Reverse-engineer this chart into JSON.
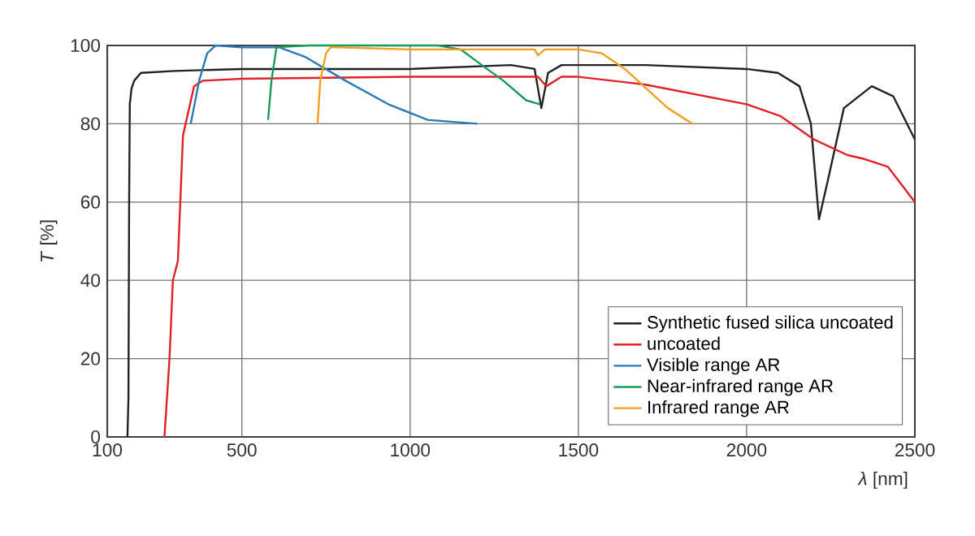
{
  "chart_data": {
    "type": "line",
    "xlabel": "*λ* [nm]",
    "ylabel": "*T* [%]",
    "xlim": [
      100,
      2500
    ],
    "xticks": [
      100,
      500,
      1000,
      1500,
      2000,
      2500
    ],
    "ylim": [
      0,
      100
    ],
    "yticks": [
      0,
      20,
      40,
      60,
      80,
      100
    ],
    "grid": true,
    "legend": "bottom right",
    "marker": "none",
    "line_style": "solid",
    "series": [
      {
        "name": "Synthetic fused silica uncoated",
        "color": "#222222",
        "x": [
          160,
          163,
          165,
          167,
          172,
          180,
          200,
          300,
          500,
          1000,
          1300,
          1370,
          1390,
          1410,
          1450,
          1700,
          2000,
          2093,
          2157,
          2191,
          2215,
          2240,
          2289,
          2372,
          2436,
          2500
        ],
        "values": [
          0,
          10,
          60,
          85,
          89,
          91,
          93,
          93.5,
          94,
          94,
          95,
          94,
          84,
          93,
          95,
          95,
          94,
          93,
          89.6,
          80,
          55.6,
          65,
          84,
          89.6,
          87,
          76
        ]
      },
      {
        "name": "uncoated",
        "color": "#e0202a",
        "x": [
          270,
          285,
          295,
          310,
          325,
          358,
          383,
          500,
          1000,
          1380,
          1405,
          1450,
          1500,
          1700,
          2000,
          2100,
          2200,
          2300,
          2350,
          2420,
          2500
        ],
        "values": [
          0,
          20,
          40,
          45,
          77,
          89.6,
          91,
          91.5,
          92,
          92,
          89.6,
          92,
          92,
          90,
          85,
          82,
          76,
          72,
          71,
          69,
          60
        ]
      },
      {
        "name": "Visible range AR",
        "color": "#2a7ab8",
        "x": [
          348,
          373,
          397,
          422,
          500,
          612,
          690,
          808,
          935,
          1052,
          1199
        ],
        "values": [
          80,
          91,
          98,
          100,
          99.5,
          99.5,
          97,
          91,
          85,
          81,
          80
        ]
      },
      {
        "name": "Near-infrared range AR",
        "color": "#1a9a5a",
        "x": [
          578,
          588,
          603,
          700,
          1082,
          1150,
          1213,
          1277,
          1345,
          1385
        ],
        "values": [
          81,
          91,
          99.6,
          100,
          100,
          99,
          95,
          91,
          86,
          85
        ]
      },
      {
        "name": "Infrared range AR",
        "color": "#f0a020",
        "x": [
          725,
          733,
          750,
          764,
          1000,
          1370,
          1380,
          1400,
          1500,
          1570,
          1638,
          1702,
          1766,
          1839
        ],
        "values": [
          80,
          91,
          98,
          99.6,
          99,
          99,
          97.5,
          99,
          99,
          98,
          94,
          89,
          84,
          80
        ]
      }
    ]
  }
}
